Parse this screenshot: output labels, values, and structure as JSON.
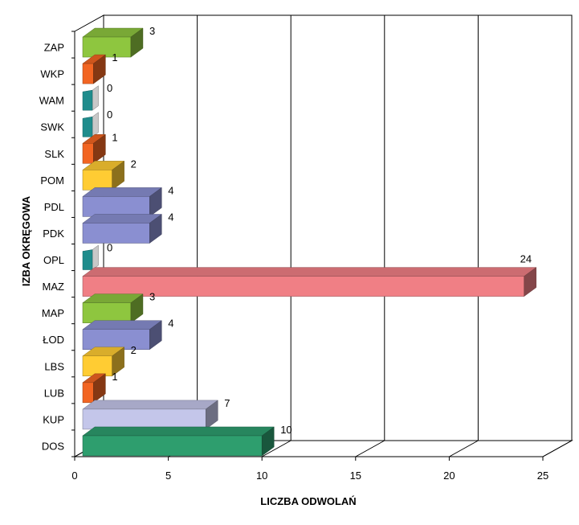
{
  "chart_data": {
    "type": "bar",
    "orientation": "horizontal",
    "style": "3d",
    "categories": [
      "ZAP",
      "WKP",
      "WAM",
      "SWK",
      "SLK",
      "POM",
      "PDL",
      "PDK",
      "OPL",
      "MAZ",
      "MAP",
      "ŁOD",
      "LBS",
      "LUB",
      "KUP",
      "DOS"
    ],
    "values": [
      3,
      1,
      0,
      0,
      1,
      2,
      4,
      4,
      0,
      24,
      3,
      4,
      2,
      1,
      7,
      10
    ],
    "colors": [
      "#8ec63f",
      "#f26522",
      "#1f8c8c",
      "#1f8c8c",
      "#f26522",
      "#ffcc33",
      "#8a8fd1",
      "#8a8fd1",
      "#1f8c8c",
      "#f07f85",
      "#8ec63f",
      "#8a8fd1",
      "#ffcc33",
      "#f26522",
      "#c4c6ea",
      "#2e9e6e"
    ],
    "xlabel": "LICZBA ODWOLAŃ",
    "ylabel": "IZBA OKRĘGOWA",
    "xlim": [
      0,
      25
    ],
    "xticks": [
      0,
      5,
      10,
      15,
      20,
      25
    ],
    "grid": true,
    "legend": "none"
  }
}
